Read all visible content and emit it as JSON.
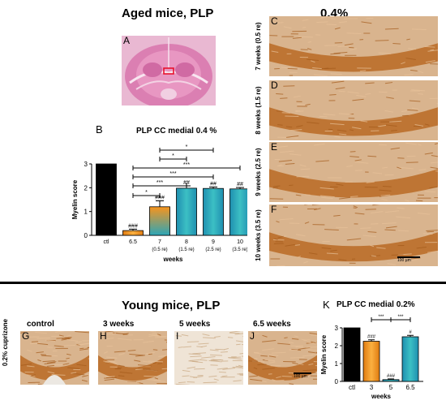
{
  "header_aged": "Aged mice, PLP",
  "header_conc": "0.4%",
  "panel_a_label": "A",
  "panel_b_label": "B",
  "panel_b_title": "PLP CC medial 0.4 %",
  "aged_panels": [
    {
      "letter": "C",
      "label": "7 weeks (0.5 re)"
    },
    {
      "letter": "D",
      "label": "8 weeks (1.5 re)"
    },
    {
      "letter": "E",
      "label": "9 weeks (2.5 re)"
    },
    {
      "letter": "F",
      "label": "10 weeks (3.5 re)"
    }
  ],
  "scalebar_aged": "100 µm",
  "header_young": "Young mice, PLP",
  "young_panels": [
    {
      "letter": "G",
      "label": "control"
    },
    {
      "letter": "H",
      "label": "3 weeks"
    },
    {
      "letter": "I",
      "label": "5 weeks"
    },
    {
      "letter": "J",
      "label": "6.5 weeks"
    }
  ],
  "young_side_label": "0.2% cuprizone",
  "scalebar_young": "100 µm",
  "panel_k_label": "K",
  "panel_k_title": "PLP CC medial 0.2%",
  "chart_data": [
    {
      "type": "bar",
      "title": "PLP CC medial 0.4 %",
      "ylabel": "Myelin score",
      "xlabel": "weeks",
      "ylim": [
        0,
        3
      ],
      "yticks": [
        0,
        1,
        2,
        3
      ],
      "categories": [
        "ctl",
        "6.5",
        "7",
        "8",
        "9",
        "10"
      ],
      "category_sublabels": [
        "",
        "",
        "(0.5 re)",
        "(1.5 re)",
        "(2.5 re)",
        "(3.5 re)"
      ],
      "values": [
        3.0,
        0.2,
        1.2,
        1.98,
        1.97,
        1.95
      ],
      "errors": [
        0,
        0.06,
        0.25,
        0.1,
        0.06,
        0.06
      ],
      "colors": [
        "#000000",
        "#f7941d",
        "#2ba6b8",
        "#2ba6b8",
        "#2ba6b8",
        "#2ba6b8"
      ],
      "bar_annotations": [
        "",
        "###",
        "###",
        "##",
        "##",
        "##"
      ],
      "comparisons": [
        {
          "from": "7",
          "to": "9",
          "label": "*"
        },
        {
          "from": "7",
          "to": "8",
          "label": "*"
        },
        {
          "from": "6.5",
          "to": "10",
          "label": "***"
        },
        {
          "from": "6.5",
          "to": "9",
          "label": "***"
        },
        {
          "from": "6.5",
          "to": "8",
          "label": "***"
        },
        {
          "from": "6.5",
          "to": "7",
          "label": "*"
        }
      ]
    },
    {
      "type": "bar",
      "title": "PLP CC medial 0.2%",
      "ylabel": "Myelin score",
      "xlabel": "weeks",
      "ylim": [
        0,
        3
      ],
      "yticks": [
        0,
        1,
        2,
        3
      ],
      "categories": [
        "ctl",
        "3",
        "5",
        "6.5"
      ],
      "values": [
        3.0,
        2.25,
        0.1,
        2.5
      ],
      "errors": [
        0,
        0.08,
        0.04,
        0.08
      ],
      "colors": [
        "#000000",
        "#f7941d",
        "#2ba6b8",
        "#2ba6b8"
      ],
      "bar_annotations": [
        "",
        "###",
        "###",
        "#"
      ],
      "comparisons": [
        {
          "from": "3",
          "to": "5",
          "label": "***"
        },
        {
          "from": "5",
          "to": "6.5",
          "label": "***"
        }
      ]
    }
  ]
}
